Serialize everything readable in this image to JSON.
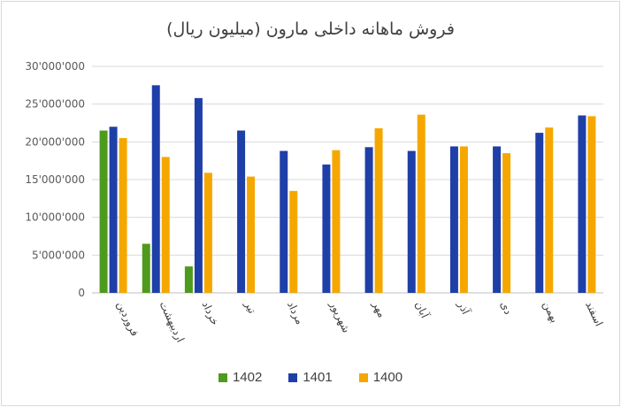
{
  "chart_data": {
    "type": "bar",
    "title": "فروش ماهانه داخلی مارون (میلیون ریال)",
    "categories": [
      "فروردین",
      "اردیبهشت",
      "خرداد",
      "تیر",
      "مرداد",
      "شهریور",
      "مهر",
      "آبان",
      "آذر",
      "دی",
      "بهمن",
      "اسفند"
    ],
    "series": [
      {
        "name": "1402",
        "color": "#4e9a1e",
        "values": [
          21500000,
          6500000,
          3500000,
          null,
          null,
          null,
          null,
          null,
          null,
          null,
          null,
          null
        ]
      },
      {
        "name": "1401",
        "color": "#1f3fa8",
        "values": [
          22000000,
          27500000,
          25800000,
          21500000,
          18800000,
          17000000,
          19300000,
          18800000,
          19400000,
          19400000,
          21200000,
          23500000
        ]
      },
      {
        "name": "1400",
        "color": "#f5a700",
        "values": [
          20500000,
          18000000,
          15900000,
          15400000,
          13500000,
          18900000,
          21800000,
          23600000,
          19400000,
          18500000,
          21900000,
          23400000
        ]
      }
    ],
    "y_ticks": [
      "0",
      "5'000'000",
      "10'000'000",
      "15'000'000",
      "20'000'000",
      "25'000'000",
      "30'000'000"
    ],
    "ylim": [
      0,
      30000000
    ],
    "grid": true,
    "legend_position": "bottom"
  }
}
